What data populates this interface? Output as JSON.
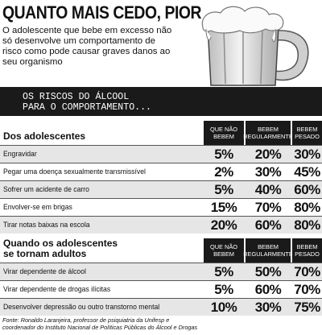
{
  "headline": "QUANTO MAIS CEDO, PIOR",
  "lede": "O adolescente que bebe em excesso não só desenvolve um comportamento de risco como pode causar graves danos ao seu organismo",
  "banner": {
    "line1": "OS RISCOS DO ÁLCOOL",
    "line2": "PARA O COMPORTAMENTO..."
  },
  "sections": [
    {
      "title_line1": "Dos adolescentes",
      "title_line2": "",
      "columns": [
        "QUE NÃO BEBEM",
        "BEBEM REGULARMENTE",
        "BEBEM PESADO"
      ],
      "rows": [
        {
          "label": "Engravidar",
          "values": [
            "5%",
            "20%",
            "30%"
          ]
        },
        {
          "label": "Pegar uma doença sexualmente transmissível",
          "values": [
            "2%",
            "30%",
            "45%"
          ]
        },
        {
          "label": "Sofrer um acidente de carro",
          "values": [
            "5%",
            "40%",
            "60%"
          ]
        },
        {
          "label": "Envolver-se em brigas",
          "values": [
            "15%",
            "70%",
            "80%"
          ]
        },
        {
          "label": "Tirar notas baixas na escola",
          "values": [
            "20%",
            "60%",
            "80%"
          ]
        }
      ]
    },
    {
      "title_line1": "Quando os adolescentes",
      "title_line2": "se tornam adultos",
      "columns": [
        "QUE NÃO BEBEM",
        "BEBEM REGULARMENTE",
        "BEBEM PESADO"
      ],
      "rows": [
        {
          "label": "Virar dependente de álcool",
          "values": [
            "5%",
            "50%",
            "70%"
          ]
        },
        {
          "label": "Virar dependente de drogas ilícitas",
          "values": [
            "5%",
            "60%",
            "70%"
          ]
        },
        {
          "label": "Desenvolver depressão ou outro transtorno mental",
          "values": [
            "10%",
            "30%",
            "75%"
          ]
        }
      ]
    }
  ],
  "source": {
    "line1": "Fonte: Ronaldo Laranjeira, professor de psiquiatria da Unifesp e",
    "line2": "coordenador do Instituto Nacional de Políticas Públicas do Álcool e Drogas"
  },
  "colors": {
    "dark": "#1a1a1a",
    "row_alt": "#e6e6e6"
  },
  "illustration": "beer-mug-icon"
}
